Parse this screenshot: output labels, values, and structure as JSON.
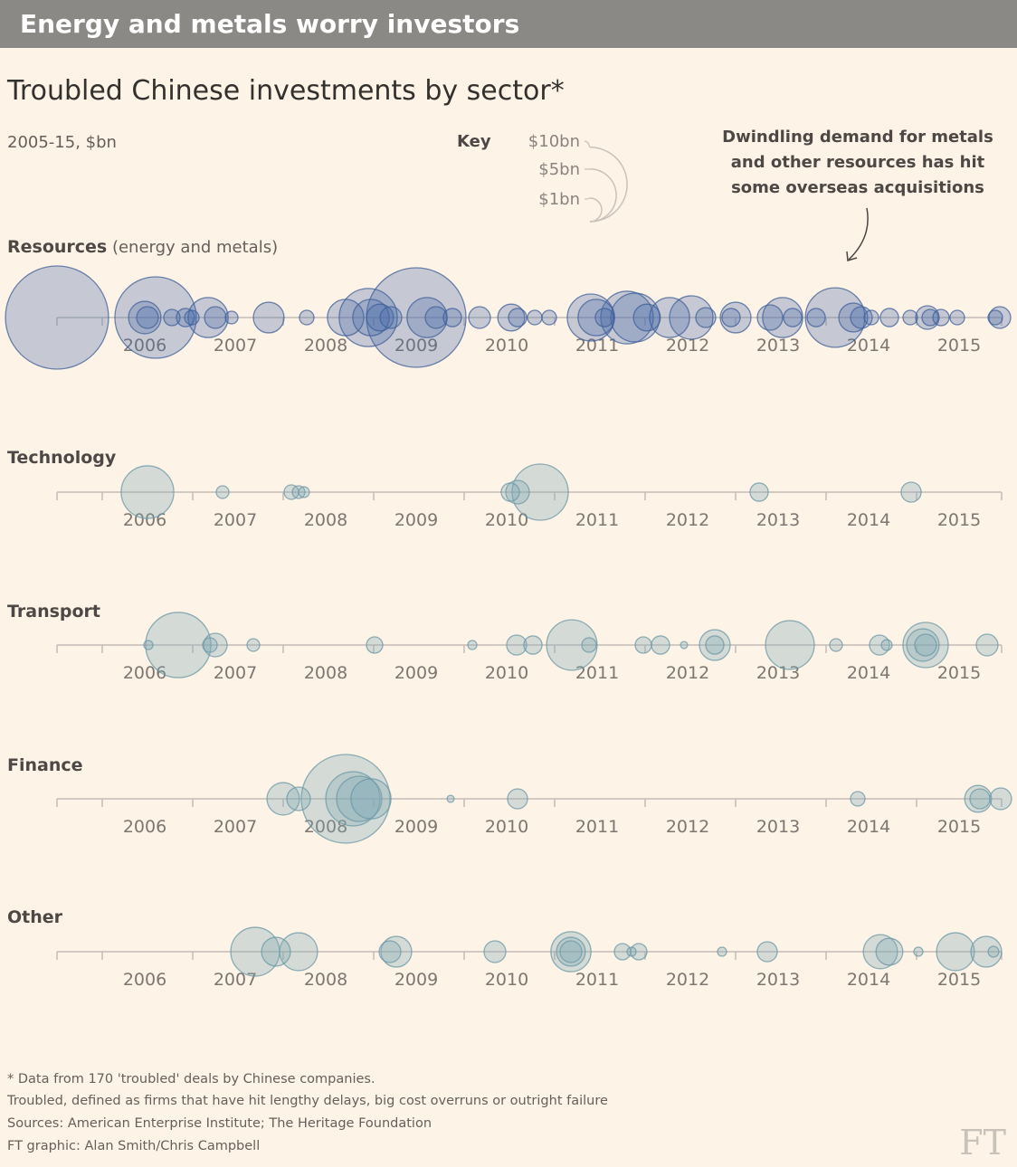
{
  "header": {
    "title": "Energy and metals worry investors"
  },
  "subtitle": "Troubled Chinese investments by sector*",
  "units": "2005-15, $bn",
  "key": {
    "label": "Key",
    "sizes": [
      {
        "label": "$10bn",
        "value": 10
      },
      {
        "label": "$5bn",
        "value": 5
      },
      {
        "label": "$1bn",
        "value": 1
      }
    ]
  },
  "annotation": {
    "lines": [
      "Dwindling demand for metals",
      "and other resources has hit",
      "some overseas acquisitions"
    ]
  },
  "footer": {
    "lines": [
      "* Data from 170 'troubled' deals by Chinese companies.",
      "Troubled, defined as firms that have hit lengthy delays, big cost overruns or outright failure",
      "Sources: American Enterprise Institute; The Heritage Foundation",
      "FT graphic: Alan Smith/Chris Campbell"
    ]
  },
  "logo": "FT",
  "colors": {
    "background": "#fdf3e6",
    "header_bar": "#8b8985",
    "resources": "#4a6aa8",
    "other_sectors": "#7fa7b3",
    "axis": "#c4bdb6"
  },
  "chart_data": {
    "type": "scatter",
    "encoding": "bubble area proportional to deal value ($bn)",
    "xlim": [
      2005.5,
      2016
    ],
    "tick_labels": [
      "2006",
      "2007",
      "2008",
      "2009",
      "2010",
      "2011",
      "2012",
      "2013",
      "2014",
      "2015"
    ],
    "grid": false,
    "series": [
      {
        "name": "Resources",
        "name_suffix": "(energy and metals)",
        "points": [
          [
            2005.5,
            19.2
          ],
          [
            2006.59,
            12.0
          ],
          [
            2006.47,
            1.9
          ],
          [
            2006.5,
            0.85
          ],
          [
            2006.77,
            0.48
          ],
          [
            2006.92,
            0.6
          ],
          [
            2006.99,
            0.38
          ],
          [
            2007.17,
            2.9
          ],
          [
            2007.25,
            0.85
          ],
          [
            2007.43,
            0.29
          ],
          [
            2007.84,
            1.7
          ],
          [
            2008.26,
            0.38
          ],
          [
            2008.69,
            2.4
          ],
          [
            2008.94,
            6.1
          ],
          [
            2008.97,
            2.4
          ],
          [
            2009.07,
            1.3
          ],
          [
            2009.19,
            0.85
          ],
          [
            2009.47,
            17.9
          ],
          [
            2009.59,
            2.9
          ],
          [
            2009.69,
            0.85
          ],
          [
            2009.87,
            0.6
          ],
          [
            2010.17,
            0.85
          ],
          [
            2010.52,
            1.3
          ],
          [
            2010.59,
            0.6
          ],
          [
            2010.78,
            0.38
          ],
          [
            2010.94,
            0.38
          ],
          [
            2011.4,
            4.0
          ],
          [
            2011.46,
            2.4
          ],
          [
            2011.55,
            0.6
          ],
          [
            2011.8,
            5.0
          ],
          [
            2011.89,
            4.3
          ],
          [
            2012.02,
            1.3
          ],
          [
            2012.27,
            2.9
          ],
          [
            2012.51,
            3.4
          ],
          [
            2012.67,
            0.72
          ],
          [
            2013.0,
            1.7
          ],
          [
            2012.95,
            0.6
          ],
          [
            2013.38,
            1.16
          ],
          [
            2013.52,
            2.9
          ],
          [
            2013.63,
            0.6
          ],
          [
            2014.1,
            6.4
          ],
          [
            2013.89,
            0.6
          ],
          [
            2014.3,
            1.5
          ],
          [
            2014.39,
            0.85
          ],
          [
            2014.5,
            0.38
          ],
          [
            2014.7,
            0.6
          ],
          [
            2014.93,
            0.38
          ],
          [
            2015.12,
            1.0
          ],
          [
            2015.15,
            0.48
          ],
          [
            2015.27,
            0.48
          ],
          [
            2015.45,
            0.38
          ],
          [
            2015.92,
            0.85
          ],
          [
            2015.87,
            0.38
          ]
        ]
      },
      {
        "name": "Technology",
        "points": [
          [
            2006.5,
            5.0
          ],
          [
            2007.33,
            0.29
          ],
          [
            2008.09,
            0.38
          ],
          [
            2008.17,
            0.29
          ],
          [
            2008.23,
            0.21
          ],
          [
            2010.51,
            0.6
          ],
          [
            2010.59,
            1.0
          ],
          [
            2010.84,
            5.7
          ],
          [
            2013.26,
            0.6
          ],
          [
            2014.94,
            0.72
          ]
        ]
      },
      {
        "name": "Transport",
        "points": [
          [
            2006.51,
            0.15
          ],
          [
            2006.84,
            7.7
          ],
          [
            2007.19,
            0.38
          ],
          [
            2007.25,
            1.0
          ],
          [
            2007.67,
            0.29
          ],
          [
            2009.01,
            0.48
          ],
          [
            2010.09,
            0.15
          ],
          [
            2010.58,
            0.72
          ],
          [
            2010.76,
            0.6
          ],
          [
            2011.19,
            4.6
          ],
          [
            2011.38,
            0.38
          ],
          [
            2011.98,
            0.48
          ],
          [
            2012.17,
            0.6
          ],
          [
            2012.43,
            0.09
          ],
          [
            2012.77,
            1.7
          ],
          [
            2012.77,
            0.6
          ],
          [
            2013.6,
            4.3
          ],
          [
            2014.11,
            0.29
          ],
          [
            2014.59,
            0.72
          ],
          [
            2014.67,
            0.21
          ],
          [
            2015.1,
            3.7
          ],
          [
            2015.07,
            1.9
          ],
          [
            2015.1,
            0.85
          ],
          [
            2015.78,
            0.85
          ]
        ]
      },
      {
        "name": "Finance",
        "points": [
          [
            2008.0,
            1.9
          ],
          [
            2008.17,
            1.0
          ],
          [
            2008.69,
            14.2
          ],
          [
            2008.77,
            5.3
          ],
          [
            2008.84,
            3.7
          ],
          [
            2008.97,
            2.9
          ],
          [
            2009.85,
            0.09
          ],
          [
            2010.59,
            0.72
          ],
          [
            2014.35,
            0.38
          ],
          [
            2015.68,
            1.3
          ],
          [
            2015.7,
            0.72
          ],
          [
            2015.93,
            0.85
          ]
        ]
      },
      {
        "name": "Other",
        "points": [
          [
            2007.69,
            4.3
          ],
          [
            2007.92,
            1.5
          ],
          [
            2008.17,
            2.6
          ],
          [
            2009.18,
            0.85
          ],
          [
            2009.25,
            1.7
          ],
          [
            2010.34,
            0.85
          ],
          [
            2011.18,
            2.9
          ],
          [
            2011.18,
            1.5
          ],
          [
            2011.18,
            0.85
          ],
          [
            2011.75,
            0.48
          ],
          [
            2011.85,
            0.15
          ],
          [
            2011.93,
            0.48
          ],
          [
            2012.85,
            0.15
          ],
          [
            2013.35,
            0.72
          ],
          [
            2014.6,
            2.1
          ],
          [
            2014.7,
            1.3
          ],
          [
            2015.02,
            0.15
          ],
          [
            2015.43,
            2.6
          ],
          [
            2015.77,
            1.7
          ],
          [
            2015.85,
            0.21
          ]
        ]
      }
    ]
  }
}
